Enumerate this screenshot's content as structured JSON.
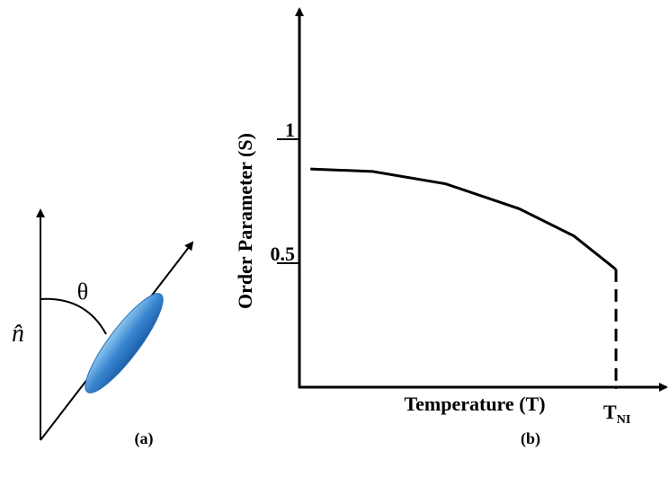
{
  "diagram": {
    "director_label": "n̂",
    "angle_label": "θ",
    "caption": "(a)"
  },
  "chart_data": {
    "type": "line",
    "caption": "(b)",
    "x_label": "Temperature (T)",
    "y_label": "Order Parameter (S)",
    "xlim": [
      0,
      1
    ],
    "ylim": [
      0,
      1.5
    ],
    "xticks": [
      {
        "value": 0.865,
        "label": "T",
        "subscript": "NI"
      }
    ],
    "yticks": [
      0.5,
      1
    ],
    "series": [
      {
        "color": "#000000",
        "style": "solid",
        "x": [
          0.03,
          0.2,
          0.4,
          0.6,
          0.75,
          0.865
        ],
        "values": [
          0.88,
          0.87,
          0.82,
          0.72,
          0.61,
          0.475
        ]
      },
      {
        "color": "#000000",
        "style": "dashed",
        "x": [
          0.865,
          0.865
        ],
        "values": [
          0.475,
          0
        ]
      }
    ]
  }
}
